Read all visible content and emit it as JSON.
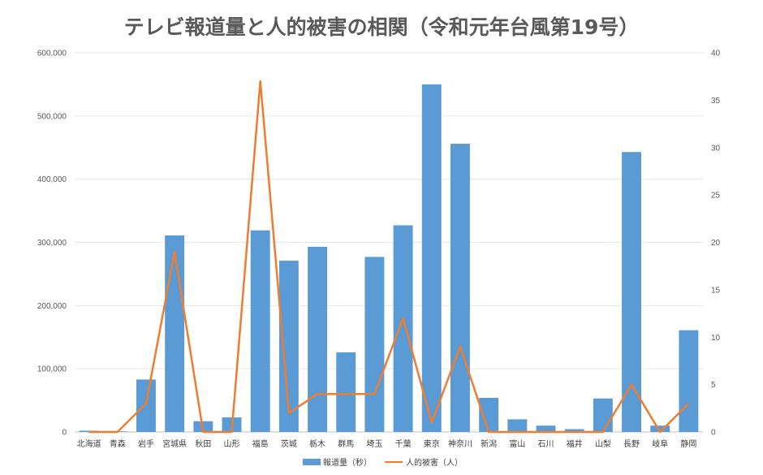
{
  "chart_data": {
    "type": "bar+line",
    "title": "テレビ報道量と人的被害の相関（令和元年台風第19号）",
    "categories": [
      "北海道",
      "青森",
      "岩手",
      "宮城県",
      "秋田",
      "山形",
      "福島",
      "茨城",
      "栃木",
      "群馬",
      "埼玉",
      "千葉",
      "東京",
      "神奈川",
      "新潟",
      "富山",
      "石川",
      "福井",
      "山梨",
      "長野",
      "岐阜",
      "静岡"
    ],
    "series": [
      {
        "name": "報道量（秒）",
        "type": "bar",
        "axis": "left",
        "color": "#5b9bd5",
        "values": [
          2000,
          1000,
          83000,
          311000,
          17000,
          23000,
          319000,
          271000,
          293000,
          126000,
          277000,
          327000,
          550000,
          456000,
          54000,
          20000,
          10000,
          4500,
          53000,
          443000,
          10000,
          161000
        ]
      },
      {
        "name": "人的被害（人）",
        "type": "line",
        "axis": "right",
        "color": "#ed7d31",
        "values": [
          0,
          0,
          3,
          19,
          0,
          0,
          37,
          2,
          4,
          4,
          4,
          12,
          1,
          9,
          0,
          0,
          0,
          0,
          0,
          5,
          0,
          3
        ]
      }
    ],
    "y_left": {
      "min": 0,
      "max": 600000,
      "ticks": [
        "0",
        "100,000",
        "200,000",
        "300,000",
        "400,000",
        "500,000",
        "600,000"
      ]
    },
    "y_right": {
      "min": 0,
      "max": 40,
      "ticks": [
        "0",
        "5",
        "10",
        "15",
        "20",
        "25",
        "30",
        "35",
        "40"
      ]
    },
    "grid": true,
    "legend_position": "bottom"
  }
}
